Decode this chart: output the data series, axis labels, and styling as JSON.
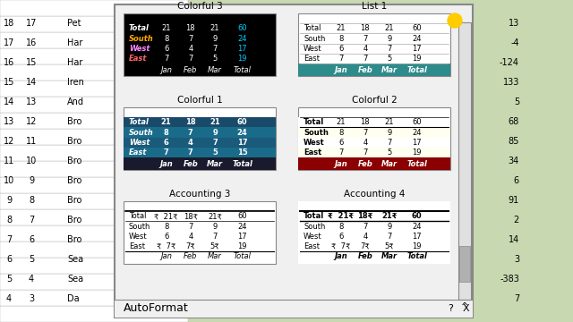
{
  "bg_color": "#f0f0f0",
  "dialog_bg": "#f0f0f0",
  "title": "AutoFormat",
  "excel_bg": "#d4e8c2",
  "spreadsheet_bg": "#c6d9f1",
  "table_data": {
    "headers": [
      "Jan",
      "Feb",
      "Mar",
      "Total"
    ],
    "rows": [
      [
        "East",
        "7",
        "7",
        "5",
        "19"
      ],
      [
        "West",
        "6",
        "4",
        "7",
        "17"
      ],
      [
        "South",
        "8",
        "7",
        "9",
        "24"
      ],
      [
        "Total",
        "21",
        "18",
        "21",
        "60"
      ]
    ]
  },
  "panels": [
    {
      "name": "Accounting 3",
      "style": "accounting3"
    },
    {
      "name": "Accounting 4",
      "style": "accounting4"
    },
    {
      "name": "Colorful 1",
      "style": "colorful1"
    },
    {
      "name": "Colorful 2",
      "style": "colorful2"
    },
    {
      "name": "Colorful 3",
      "style": "colorful3"
    },
    {
      "name": "List 1",
      "style": "list1"
    }
  ]
}
